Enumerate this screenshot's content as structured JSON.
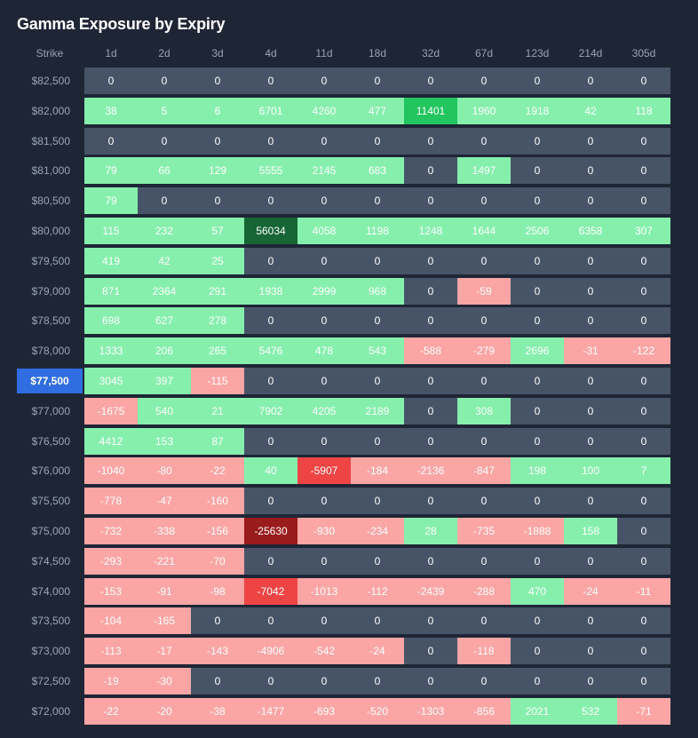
{
  "title": "Gamma Exposure by Expiry",
  "header_label": "Strike",
  "current_strike": "$77,500",
  "colors": {
    "background": "#1e2636",
    "zero_cell": "#475467",
    "pos_light": "#86efac",
    "pos_mid": "#22c55e",
    "pos_dark": "#166534",
    "neg_light": "#fca5a5",
    "neg_mid": "#ef4444",
    "neg_dark": "#991b1b",
    "current_strike": "#2f6de0"
  },
  "chart_data": {
    "type": "heatmap",
    "title": "Gamma Exposure by Expiry",
    "x_label": "",
    "y_label": "Strike",
    "columns": [
      "1d",
      "2d",
      "3d",
      "4d",
      "11d",
      "18d",
      "32d",
      "67d",
      "123d",
      "214d",
      "305d"
    ],
    "rows": [
      {
        "strike": "$82,500",
        "values": [
          0,
          0,
          0,
          0,
          0,
          0,
          0,
          0,
          0,
          0,
          0
        ]
      },
      {
        "strike": "$82,000",
        "values": [
          38,
          5,
          6,
          6701,
          4260,
          477,
          11401,
          1960,
          1918,
          42,
          118
        ]
      },
      {
        "strike": "$81,500",
        "values": [
          0,
          0,
          0,
          0,
          0,
          0,
          0,
          0,
          0,
          0,
          0
        ]
      },
      {
        "strike": "$81,000",
        "values": [
          79,
          66,
          129,
          5555,
          2145,
          683,
          0,
          1497,
          0,
          0,
          0
        ]
      },
      {
        "strike": "$80,500",
        "values": [
          79,
          0,
          0,
          0,
          0,
          0,
          0,
          0,
          0,
          0,
          0
        ]
      },
      {
        "strike": "$80,000",
        "values": [
          115,
          232,
          57,
          56034,
          4058,
          1198,
          1248,
          1644,
          2506,
          6358,
          307
        ]
      },
      {
        "strike": "$79,500",
        "values": [
          419,
          42,
          25,
          0,
          0,
          0,
          0,
          0,
          0,
          0,
          0
        ]
      },
      {
        "strike": "$79,000",
        "values": [
          871,
          2364,
          291,
          1938,
          2999,
          968,
          0,
          -59,
          0,
          0,
          0
        ]
      },
      {
        "strike": "$78,500",
        "values": [
          698,
          627,
          278,
          0,
          0,
          0,
          0,
          0,
          0,
          0,
          0
        ]
      },
      {
        "strike": "$78,000",
        "values": [
          1333,
          206,
          265,
          5476,
          478,
          543,
          -588,
          -279,
          2696,
          -31,
          -122
        ]
      },
      {
        "strike": "$77,500",
        "values": [
          3045,
          397,
          -115,
          0,
          0,
          0,
          0,
          0,
          0,
          0,
          0
        ]
      },
      {
        "strike": "$77,000",
        "values": [
          -1675,
          540,
          21,
          7902,
          4205,
          2189,
          0,
          308,
          0,
          0,
          0
        ]
      },
      {
        "strike": "$76,500",
        "values": [
          4412,
          153,
          87,
          0,
          0,
          0,
          0,
          0,
          0,
          0,
          0
        ]
      },
      {
        "strike": "$76,000",
        "values": [
          -1040,
          -80,
          -22,
          40,
          -5907,
          -184,
          -2136,
          -847,
          198,
          100,
          7
        ]
      },
      {
        "strike": "$75,500",
        "values": [
          -778,
          -47,
          -160,
          0,
          0,
          0,
          0,
          0,
          0,
          0,
          0
        ]
      },
      {
        "strike": "$75,000",
        "values": [
          -732,
          -338,
          -156,
          -25630,
          -930,
          -234,
          28,
          -735,
          -1888,
          158,
          0
        ]
      },
      {
        "strike": "$74,500",
        "values": [
          -293,
          -221,
          -70,
          0,
          0,
          0,
          0,
          0,
          0,
          0,
          0
        ]
      },
      {
        "strike": "$74,000",
        "values": [
          -153,
          -91,
          -98,
          -7042,
          -1013,
          -112,
          -2439,
          -288,
          470,
          -24,
          -11
        ]
      },
      {
        "strike": "$73,500",
        "values": [
          -104,
          -165,
          0,
          0,
          0,
          0,
          0,
          0,
          0,
          0,
          0
        ]
      },
      {
        "strike": "$73,000",
        "values": [
          -113,
          -17,
          -143,
          -4906,
          -542,
          -24,
          0,
          -118,
          0,
          0,
          0
        ]
      },
      {
        "strike": "$72,500",
        "values": [
          -19,
          -30,
          0,
          0,
          0,
          0,
          0,
          0,
          0,
          0,
          0
        ]
      },
      {
        "strike": "$72,000",
        "values": [
          -22,
          -20,
          -38,
          -1477,
          -693,
          -520,
          -1303,
          -856,
          2021,
          532,
          -71
        ]
      }
    ]
  }
}
